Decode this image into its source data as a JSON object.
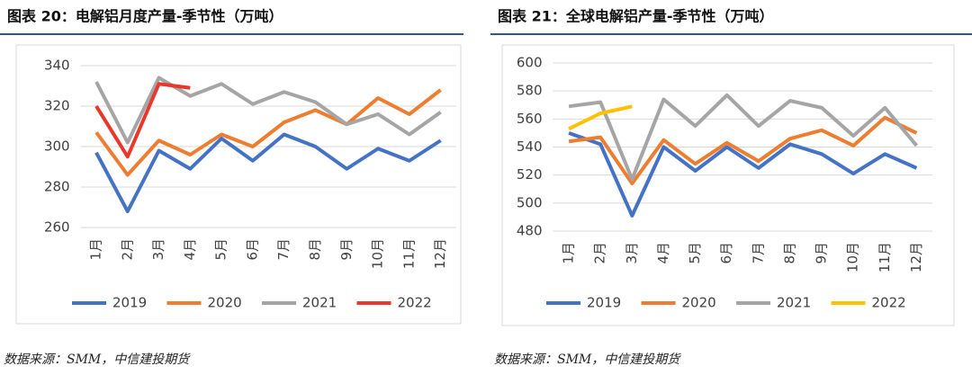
{
  "chart_data": [
    {
      "type": "line",
      "title": "图表 20：电解铝月度产量-季节性（万吨）",
      "source": "数据来源：SMM，中信建投期货",
      "categories": [
        "1月",
        "2月",
        "3月",
        "4月",
        "5月",
        "6月",
        "7月",
        "8月",
        "9月",
        "10月",
        "11月",
        "12月"
      ],
      "ylim": [
        260,
        340
      ],
      "yticks": [
        260,
        280,
        300,
        320,
        340
      ],
      "grid": true,
      "legend": "bottom",
      "series": [
        {
          "name": "2019",
          "color": "#4472c4",
          "values": [
            297,
            268,
            298,
            289,
            304,
            293,
            306,
            300,
            289,
            299,
            293,
            303
          ]
        },
        {
          "name": "2020",
          "color": "#ed7d31",
          "values": [
            307,
            286,
            303,
            296,
            306,
            300,
            312,
            318,
            311,
            324,
            316,
            328
          ]
        },
        {
          "name": "2021",
          "color": "#a5a5a5",
          "values": [
            332,
            302,
            334,
            325,
            331,
            321,
            327,
            322,
            311,
            316,
            306,
            317
          ]
        },
        {
          "name": "2022",
          "color": "#e8382c",
          "values": [
            320,
            295,
            331,
            329,
            null,
            null,
            null,
            null,
            null,
            null,
            null,
            null
          ]
        }
      ]
    },
    {
      "type": "line",
      "title": "图表 21：全球电解铝产量-季节性（万吨）",
      "source": "数据来源：SMM，中信建投期货",
      "categories": [
        "1月",
        "2月",
        "3月",
        "4月",
        "5月",
        "6月",
        "7月",
        "8月",
        "9月",
        "10月",
        "11月",
        "12月"
      ],
      "ylim": [
        480,
        600
      ],
      "yticks": [
        480,
        500,
        520,
        540,
        560,
        580,
        600
      ],
      "grid": true,
      "legend": "bottom",
      "series": [
        {
          "name": "2019",
          "color": "#4472c4",
          "values": [
            550,
            542,
            491,
            540,
            523,
            540,
            525,
            542,
            535,
            521,
            535,
            525
          ]
        },
        {
          "name": "2020",
          "color": "#ed7d31",
          "values": [
            544,
            547,
            514,
            545,
            528,
            543,
            530,
            546,
            552,
            541,
            561,
            550
          ]
        },
        {
          "name": "2021",
          "color": "#a5a5a5",
          "values": [
            569,
            572,
            517,
            574,
            555,
            577,
            555,
            573,
            568,
            548,
            568,
            541
          ]
        },
        {
          "name": "2022",
          "color": "#ffc000",
          "values": [
            553,
            564,
            569,
            null,
            null,
            null,
            null,
            null,
            null,
            null,
            null,
            null
          ]
        }
      ]
    }
  ]
}
